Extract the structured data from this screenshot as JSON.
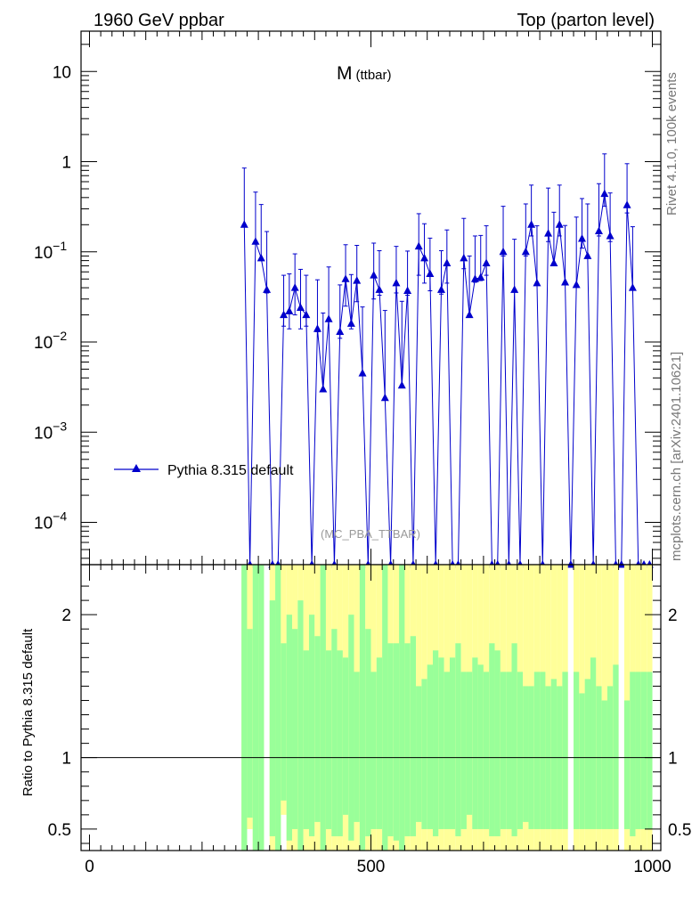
{
  "header": {
    "left": "1960 GeV ppbar",
    "right": "Top (parton level)"
  },
  "side": {
    "rivet": "Rivet 4.1.0,  100k events",
    "mcplots": "mcplots.cern.ch [arXiv:2401.10621]"
  },
  "chart_data": {
    "type": "line",
    "title": "M",
    "title_sub": "(ttbar)",
    "analysis_id": "(MC_PBA_TTBAR)",
    "legend": {
      "label": "Pythia 8.315 default",
      "position": "middle-left"
    },
    "main": {
      "yscale": "log",
      "ylim": [
        3.4e-05,
        28
      ],
      "y_ticks": [
        {
          "v": 10,
          "label": "10",
          "exp": ""
        },
        {
          "v": 1,
          "label": "1",
          "exp": ""
        },
        {
          "v": 0.1,
          "label": "10",
          "exp": "−1"
        },
        {
          "v": 0.01,
          "label": "10",
          "exp": "−2"
        },
        {
          "v": 0.001,
          "label": "10",
          "exp": "−3"
        },
        {
          "v": 0.0001,
          "label": "10",
          "exp": "−4"
        }
      ],
      "series": [
        {
          "name": "Pythia 8.315 default",
          "color": "#0000cc",
          "x": [
            275,
            285,
            295,
            305,
            315,
            325,
            335,
            345,
            355,
            365,
            375,
            385,
            395,
            405,
            415,
            425,
            435,
            445,
            455,
            465,
            475,
            485,
            495,
            505,
            515,
            525,
            535,
            545,
            555,
            565,
            575,
            585,
            595,
            605,
            615,
            625,
            635,
            645,
            655,
            665,
            675,
            685,
            695,
            705,
            715,
            725,
            735,
            745,
            755,
            765,
            775,
            785,
            795,
            805,
            815,
            825,
            835,
            845,
            855,
            865,
            875,
            885,
            895,
            905,
            915,
            925,
            935,
            945,
            955,
            965,
            975,
            985,
            995
          ],
          "y": [
            0.2,
            0,
            0.13,
            0.085,
            0.038,
            0,
            0,
            0.02,
            0.022,
            0.04,
            0.024,
            0.02,
            0,
            0.014,
            0.003,
            0.018,
            0,
            0.013,
            0.05,
            0.016,
            0.048,
            0.0045,
            0,
            0.055,
            0.038,
            0.0024,
            0,
            0.045,
            0.0033,
            0.037,
            0,
            0.115,
            0.085,
            0.057,
            0,
            0.038,
            0.075,
            0,
            0,
            0.085,
            0.02,
            0.05,
            0.052,
            0.075,
            0,
            0,
            0.1,
            0,
            0.038,
            0,
            0.1,
            0.2,
            0.045,
            0,
            0.16,
            0.075,
            0.2,
            0.046,
            0,
            0.043,
            0.14,
            0.09,
            0,
            0.17,
            0.44,
            0.15,
            0,
            0,
            0.33,
            0.04,
            0,
            0,
            0
          ],
          "yerr_up": [
            0.65,
            0,
            0.33,
            0.25,
            0.13,
            0,
            0,
            0.035,
            0.035,
            0.055,
            0.04,
            0.035,
            0,
            0.035,
            0.018,
            0.05,
            0,
            0.03,
            0.07,
            0.04,
            0.07,
            0.02,
            0,
            0.07,
            0.065,
            0.02,
            0,
            0.07,
            0.025,
            0.065,
            0,
            0.15,
            0.12,
            0.085,
            0,
            0.065,
            0.1,
            0,
            0,
            0.15,
            0.07,
            0.1,
            0.1,
            0.12,
            0,
            0,
            0.22,
            0,
            0.1,
            0,
            0.24,
            0.35,
            0.15,
            0,
            0.35,
            0.2,
            0.35,
            0.15,
            0,
            0.2,
            0.25,
            0.25,
            0,
            0.4,
            0.78,
            0.3,
            0,
            0,
            0.62,
            0.15,
            0,
            0,
            0
          ],
          "yerr_down": [
            4e-05,
            0,
            4e-05,
            0.005,
            0.003,
            0,
            0,
            0.005,
            0.008,
            0.02,
            0.01,
            0.005,
            0,
            0.001,
            4e-05,
            0.001,
            0,
            0.002,
            0.025,
            0.002,
            0.02,
            4e-05,
            0,
            0.025,
            0.005,
            4e-05,
            0,
            0.01,
            4e-05,
            0.004,
            0,
            0.06,
            0.04,
            0.02,
            0,
            0.004,
            0.03,
            0,
            0,
            0.02,
            4e-05,
            0.004,
            0.004,
            0.02,
            0,
            0,
            0.01,
            0,
            4e-05,
            0,
            0.01,
            0.05,
            4e-05,
            0,
            0.03,
            4e-05,
            0.05,
            4e-05,
            0,
            4e-05,
            0.03,
            4e-05,
            0,
            0.02,
            0.12,
            0.02,
            0,
            0,
            0.06,
            4e-05,
            0,
            0,
            0
          ]
        }
      ]
    },
    "ratio": {
      "ylabel": "Ratio to Pythia 8.315 default",
      "ylim": [
        0.35,
        2.35
      ],
      "y_ticks": [
        {
          "v": 2,
          "label": "2"
        },
        {
          "v": 1,
          "label": "1"
        },
        {
          "v": 0.5,
          "label": "0.5"
        }
      ],
      "reference": 1,
      "band_colors": {
        "inner": "#99ff99",
        "outer": "#ffff99"
      },
      "band_x": [
        275,
        285,
        295,
        305,
        315,
        325,
        335,
        345,
        355,
        365,
        375,
        385,
        395,
        405,
        415,
        425,
        435,
        445,
        455,
        465,
        475,
        485,
        495,
        505,
        515,
        525,
        535,
        545,
        555,
        565,
        575,
        585,
        595,
        605,
        615,
        625,
        635,
        645,
        655,
        665,
        675,
        685,
        695,
        705,
        715,
        725,
        735,
        745,
        755,
        765,
        775,
        785,
        795,
        805,
        815,
        825,
        835,
        845,
        855,
        865,
        875,
        885,
        895,
        905,
        915,
        925,
        935,
        945,
        955,
        965,
        975,
        985,
        995
      ],
      "band_lo": [
        0.35,
        0.5,
        0.35,
        0.35,
        0,
        0.35,
        0.35,
        0.6,
        0.35,
        0.35,
        0.35,
        0.35,
        0.35,
        0.35,
        0.35,
        0.35,
        0.35,
        0.35,
        0.35,
        0.35,
        0.35,
        0.35,
        0.35,
        0.35,
        0.35,
        0.35,
        0.35,
        0.35,
        0.35,
        0.35,
        0.35,
        0.35,
        0.35,
        0.35,
        0.35,
        0.35,
        0.35,
        0.35,
        0.35,
        0.35,
        0.35,
        0.35,
        0.35,
        0.35,
        0.35,
        0.35,
        0.35,
        0.35,
        0.35,
        0.35,
        0.35,
        0.35,
        0.35,
        0.35,
        0.35,
        0.35,
        0.35,
        0.35,
        0,
        0.35,
        0.35,
        0.35,
        0.35,
        0.35,
        0.35,
        0.35,
        0.35,
        0,
        0.35,
        0.35,
        0.35,
        0.35,
        0.35
      ],
      "band_hi": [
        2.35,
        2.35,
        2.35,
        2.35,
        0,
        2.35,
        2.35,
        2.35,
        2.35,
        2.35,
        2.35,
        2.35,
        2.35,
        2.35,
        2.35,
        2.35,
        2.35,
        2.35,
        2.35,
        2.35,
        2.35,
        2.35,
        2.35,
        2.35,
        2.35,
        2.35,
        2.35,
        2.35,
        2.35,
        2.35,
        2.35,
        2.35,
        2.35,
        2.35,
        2.35,
        2.35,
        2.35,
        2.35,
        2.35,
        2.35,
        2.35,
        2.35,
        2.35,
        2.35,
        2.35,
        2.35,
        2.35,
        2.35,
        2.35,
        2.35,
        2.35,
        2.35,
        2.35,
        2.35,
        2.35,
        2.35,
        2.35,
        2.35,
        0,
        2.35,
        2.35,
        2.35,
        2.35,
        2.35,
        2.35,
        2.35,
        2.35,
        0,
        2.35,
        2.35,
        2.35,
        2.35,
        2.35
      ],
      "inner_lo": [
        0.35,
        0.58,
        0.35,
        0.35,
        0,
        0.45,
        0.35,
        0.7,
        0.42,
        0.5,
        0.35,
        0.5,
        0.45,
        0.55,
        0.35,
        0.5,
        0.45,
        0.45,
        0.6,
        0.42,
        0.55,
        0.35,
        0.45,
        0.5,
        0.5,
        0.35,
        0.45,
        0.42,
        0.35,
        0.45,
        0.45,
        0.55,
        0.5,
        0.5,
        0.45,
        0.5,
        0.5,
        0.5,
        0.45,
        0.5,
        0.6,
        0.5,
        0.5,
        0.5,
        0.45,
        0.45,
        0.5,
        0.5,
        0.45,
        0.5,
        0.55,
        0.5,
        0.5,
        0.5,
        0.5,
        0.5,
        0.5,
        0.5,
        0,
        0.5,
        0.5,
        0.5,
        0.5,
        0.5,
        0.5,
        0.5,
        0.5,
        0,
        0.5,
        0.45,
        0.5,
        0.5,
        0.5
      ],
      "inner_hi": [
        2.35,
        1.9,
        2.35,
        2.35,
        0,
        2.1,
        2.35,
        1.8,
        2.0,
        1.9,
        2.1,
        1.75,
        2.0,
        1.85,
        2.35,
        1.75,
        1.9,
        1.75,
        1.7,
        2.0,
        1.6,
        2.35,
        1.9,
        1.6,
        1.7,
        2.35,
        1.8,
        1.8,
        2.35,
        1.8,
        1.85,
        1.5,
        1.55,
        1.65,
        1.75,
        1.7,
        1.6,
        1.7,
        1.8,
        1.6,
        1.6,
        1.7,
        1.65,
        1.6,
        1.8,
        1.75,
        1.6,
        1.6,
        1.8,
        1.6,
        1.5,
        1.5,
        1.6,
        1.6,
        1.5,
        1.55,
        1.5,
        1.6,
        0,
        1.6,
        1.45,
        1.55,
        1.7,
        1.5,
        1.4,
        1.5,
        1.65,
        0,
        1.4,
        1.6,
        1.6,
        1.6,
        1.6
      ],
      "x_ticks": [
        0,
        500,
        1000
      ],
      "xlim": [
        -15,
        1015
      ]
    }
  }
}
